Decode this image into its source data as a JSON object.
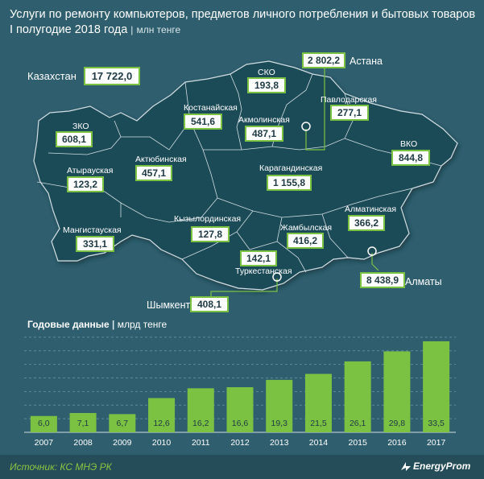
{
  "header": {
    "title_line1": "Услуги по ремонту компьютеров, предметов личного потребления и бытовых товаров",
    "title_line2": "I полугодие 2018 года",
    "separator": "|",
    "unit": "млн тенге"
  },
  "map": {
    "country_label": "Казахстан",
    "country_value": "17 722,0",
    "regions": [
      {
        "name": "ЗКО",
        "value": "608,1"
      },
      {
        "name": "Атырауская",
        "value": "123,2"
      },
      {
        "name": "Мангистауская",
        "value": "331,1"
      },
      {
        "name": "Актюбинская",
        "value": "457,1"
      },
      {
        "name": "Костанайская",
        "value": "541,6"
      },
      {
        "name": "СКО",
        "value": "193,8"
      },
      {
        "name": "Акмолинская",
        "value": "487,1"
      },
      {
        "name": "Павлодарская",
        "value": "277,1"
      },
      {
        "name": "Астана",
        "value": "2 802,2"
      },
      {
        "name": "ВКО",
        "value": "844,8"
      },
      {
        "name": "Карагандинская",
        "value": "1 155,8"
      },
      {
        "name": "Кызылординская",
        "value": "127,8"
      },
      {
        "name": "Жамбылская",
        "value": "416,2"
      },
      {
        "name": "Алматинская",
        "value": "366,2"
      },
      {
        "name": "Туркестанская",
        "value": "142,1"
      },
      {
        "name": "Алматы",
        "value": "8 438,9"
      },
      {
        "name": "Шымкент",
        "value": "408,1"
      }
    ]
  },
  "chart_data": {
    "type": "bar",
    "title": "Годовые данные",
    "unit": "млрд тенге",
    "categories": [
      "2007",
      "2008",
      "2009",
      "2010",
      "2011",
      "2012",
      "2013",
      "2014",
      "2015",
      "2016",
      "2017"
    ],
    "values": [
      6.0,
      7.1,
      6.7,
      12.6,
      16.2,
      16.6,
      19.3,
      21.5,
      26.1,
      29.8,
      33.5
    ],
    "labels": [
      "6,0",
      "7,1",
      "6,7",
      "12,6",
      "16,2",
      "16,6",
      "19,3",
      "21,5",
      "26,1",
      "29,8",
      "33,5"
    ],
    "ylim": [
      0,
      40
    ],
    "grid": true,
    "bar_color": "#7cc242"
  },
  "footer": {
    "source": "Источник: КС МНЭ РК",
    "brand": "EnergyProm"
  }
}
